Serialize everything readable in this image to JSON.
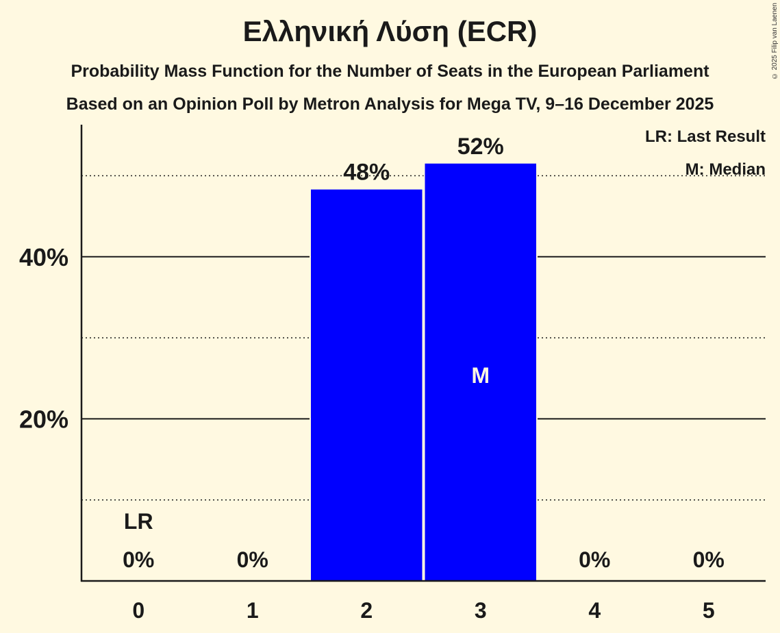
{
  "title": "Ελληνική Λύση (ECR)",
  "subtitle1": "Probability Mass Function for the Number of Seats in the European Parliament",
  "subtitle2": "Based on an Opinion Poll by Metron Analysis for Mega TV, 9–16 December 2025",
  "copyright": "© 2025 Filip van Laenen",
  "legend": {
    "last_result": "LR: Last Result",
    "median": "M: Median"
  },
  "colors": {
    "background": "#fff9e1",
    "bar": "#0000ff",
    "text": "#1a1a1a"
  },
  "chart_data": {
    "type": "bar",
    "title": "Ελληνική Λύση (ECR)",
    "subtitle": "Probability Mass Function for the Number of Seats in the European Parliament",
    "xlabel": "",
    "ylabel": "",
    "categories": [
      "0",
      "1",
      "2",
      "3",
      "4",
      "5"
    ],
    "values": [
      0,
      0,
      48.3,
      51.5,
      0,
      0
    ],
    "value_labels": [
      "0%",
      "0%",
      "48%",
      "52%",
      "0%",
      "0%"
    ],
    "ylim": [
      0,
      55
    ],
    "yticks": [
      {
        "value": 20,
        "label": "20%"
      },
      {
        "value": 40,
        "label": "40%"
      }
    ],
    "minor_gridlines": [
      10,
      30,
      50
    ],
    "grid": true,
    "annotations": [
      {
        "category": "0",
        "text": "LR",
        "meaning": "Last Result"
      },
      {
        "category": "3",
        "text": "M",
        "meaning": "Median"
      }
    ],
    "legend_position": "top-right"
  }
}
